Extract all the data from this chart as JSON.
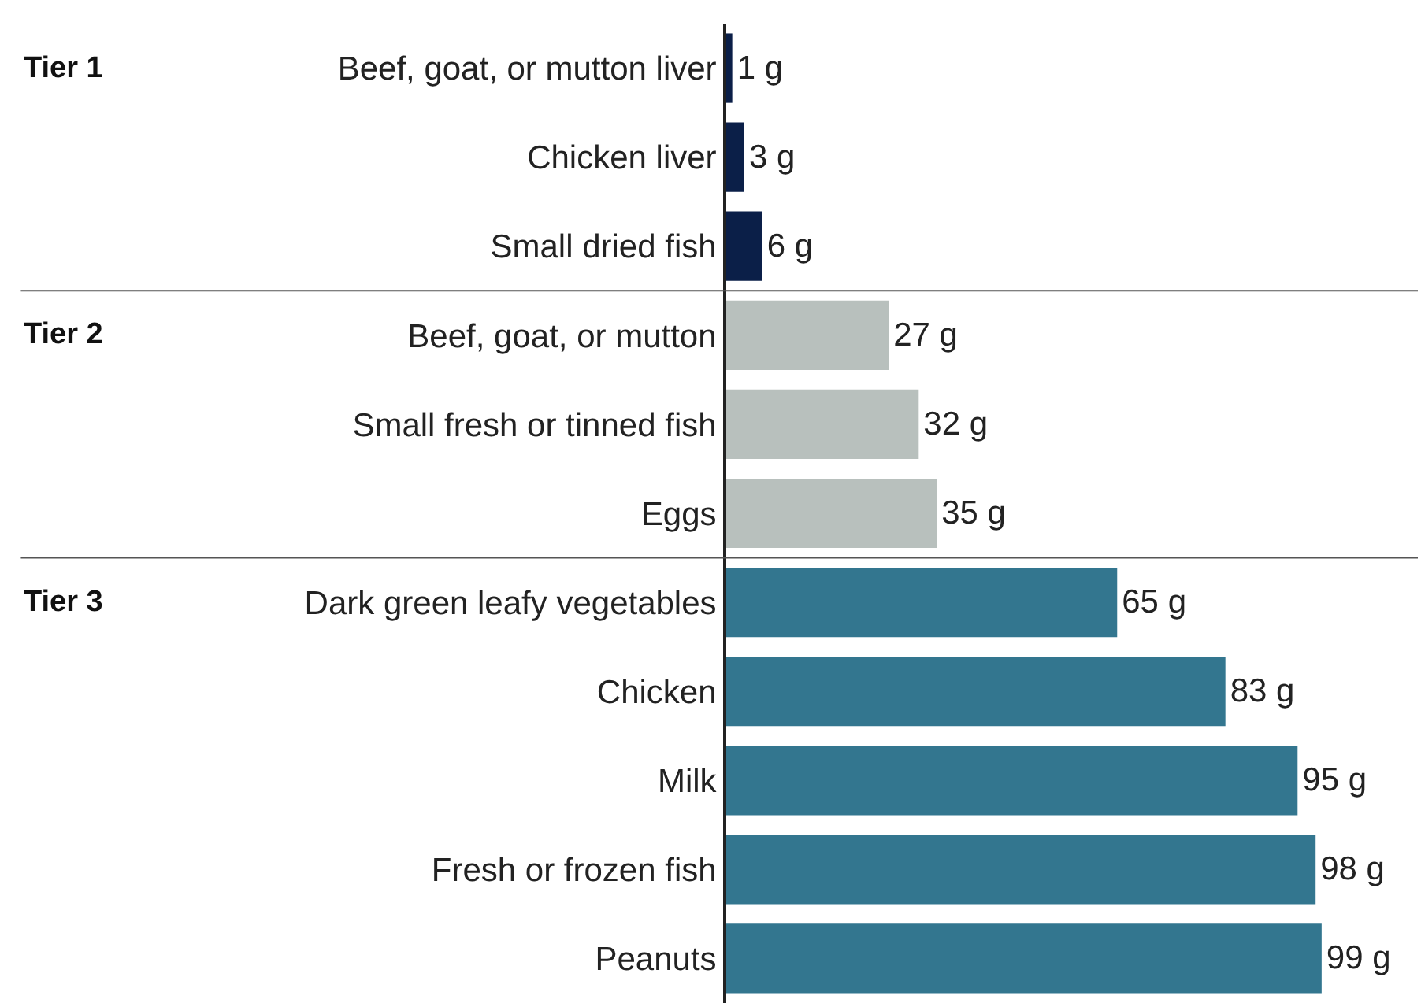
{
  "chart_data": {
    "type": "bar",
    "orientation": "horizontal",
    "categories": [
      "Beef, goat, or mutton liver",
      "Chicken liver",
      "Small dried fish",
      "Beef, goat, or mutton",
      "Small fresh or tinned fish",
      "Eggs",
      "Dark green leafy vegetables",
      "Chicken",
      "Milk",
      "Fresh or frozen fish",
      "Peanuts"
    ],
    "values": [
      1,
      3,
      6,
      27,
      32,
      35,
      65,
      83,
      95,
      98,
      99
    ],
    "colors": [
      "#0b1f48",
      "#0b1f48",
      "#0b1f48",
      "#b8c0bd",
      "#b8c0bd",
      "#b8c0bd",
      "#33768f",
      "#33768f",
      "#33768f",
      "#33768f",
      "#33768f"
    ],
    "value_labels": [
      "1 g",
      "3 g",
      "6 g",
      "27 g",
      "32 g",
      "35 g",
      "65 g",
      "83 g",
      "95 g",
      "98 g",
      "99 g"
    ],
    "xlim": [
      0,
      115
    ],
    "tick_labels": "y",
    "annotations": [
      "Tier 1",
      "Tier 2",
      "Tier 3"
    ]
  }
}
